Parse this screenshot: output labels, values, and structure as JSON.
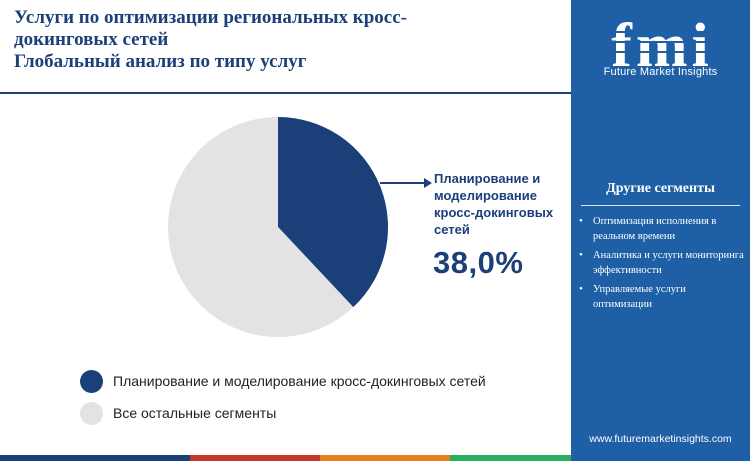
{
  "title": {
    "line1": "Услуги по оптимизации региональных кросс-",
    "line2": "докинговых сетей",
    "line3": "Глобальный анализ по типу услуг"
  },
  "chart_data": {
    "type": "pie",
    "title": "Глобальный анализ по типу услуг",
    "slices": [
      {
        "name": "Планирование и моделирование кросс-докинговых сетей",
        "value": 38.0,
        "color": "#1b3f78"
      },
      {
        "name": "Все остальные сегменты",
        "value": 62.0,
        "color": "#e3e3e3"
      }
    ],
    "callout": {
      "label": "Планирование и моделирование кросс-докинговых сетей",
      "value_text": "38,0%"
    },
    "legend": [
      {
        "label": "Планирование и моделирование кросс-докинговых сетей",
        "color": "#1b3f78"
      },
      {
        "label": "Все остальные сегменты",
        "color": "#e3e3e3"
      }
    ]
  },
  "callout_lines": [
    "Планирование и",
    "моделирование",
    "кросс-докинговых",
    "сетей"
  ],
  "sidebar": {
    "brand_letters": "fmi",
    "brand_name": "Future Market Insights",
    "section_title": "Другие сегменты",
    "items": [
      "Оптимизация исполнения в реальном времени",
      "Аналитика и услуги мониторинга эффективности",
      "Управляемые услуги оптимизации"
    ],
    "website": "www.futuremarketinsights.com"
  },
  "colors": {
    "primary": "#1b3f78",
    "panel": "#1f5fa5",
    "other": "#e3e3e3",
    "bar": [
      "#1b3f78",
      "#c0392b",
      "#e67e22",
      "#27ae60"
    ]
  }
}
